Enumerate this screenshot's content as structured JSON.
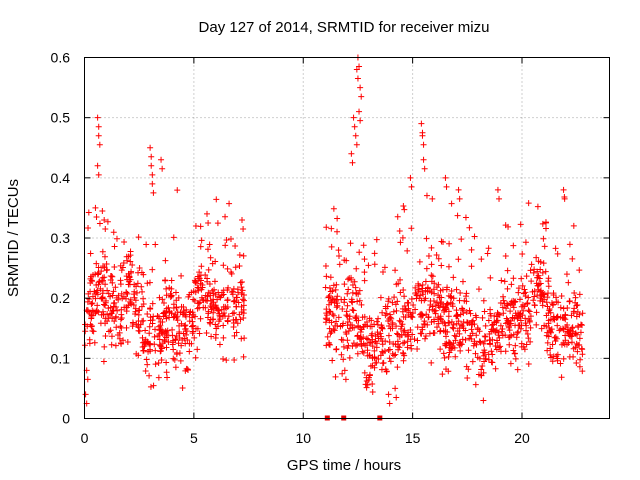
{
  "chart_data": {
    "type": "scatter",
    "title": "Day 127 of 2014, SRMTID for receiver mizu",
    "xlabel": "GPS time / hours",
    "ylabel": "SRMTID / TECUs",
    "xlim": [
      0,
      24
    ],
    "ylim": [
      0,
      0.6
    ],
    "xticks": [
      0,
      5,
      10,
      15,
      20
    ],
    "xtick_labels": [
      "0",
      "5",
      "10",
      "15",
      "20"
    ],
    "yticks": [
      0,
      0.1,
      0.2,
      0.3,
      0.4,
      0.5,
      0.6
    ],
    "ytick_labels": [
      "0",
      "0.1",
      "0.2",
      "0.3",
      "0.4",
      "0.5",
      "0.6"
    ],
    "grid": true,
    "colors": {
      "marker": "#ff0000"
    },
    "marker": "plus",
    "zero_values_x": [
      11.1,
      11.85,
      13.5
    ],
    "series": [
      {
        "name": "SRMTID",
        "segments": [
          {
            "x_start": 0.0,
            "x_end": 7.3,
            "baseline": 0.17,
            "spread": 0.06,
            "spikes": [
              {
                "x": 0.6,
                "y": 0.5
              },
              {
                "x": 0.65,
                "y": 0.47
              },
              {
                "x": 0.6,
                "y": 0.42
              },
              {
                "x": 0.5,
                "y": 0.35
              },
              {
                "x": 0.9,
                "y": 0.33
              },
              {
                "x": 3.0,
                "y": 0.45
              },
              {
                "x": 3.05,
                "y": 0.42
              },
              {
                "x": 3.5,
                "y": 0.43
              },
              {
                "x": 3.1,
                "y": 0.39
              },
              {
                "x": 5.6,
                "y": 0.34
              },
              {
                "x": 7.2,
                "y": 0.33
              },
              {
                "x": 0.05,
                "y": 0.04
              },
              {
                "x": 0.1,
                "y": 0.08
              }
            ]
          },
          {
            "x_start": 11.0,
            "x_end": 22.8,
            "baseline": 0.16,
            "spread": 0.06,
            "spikes": [
              {
                "x": 12.5,
                "y": 0.6
              },
              {
                "x": 12.45,
                "y": 0.58
              },
              {
                "x": 12.6,
                "y": 0.55
              },
              {
                "x": 12.55,
                "y": 0.51
              },
              {
                "x": 12.3,
                "y": 0.5
              },
              {
                "x": 12.4,
                "y": 0.47
              },
              {
                "x": 12.2,
                "y": 0.44
              },
              {
                "x": 15.4,
                "y": 0.49
              },
              {
                "x": 15.45,
                "y": 0.47
              },
              {
                "x": 15.5,
                "y": 0.43
              },
              {
                "x": 14.9,
                "y": 0.4
              },
              {
                "x": 16.5,
                "y": 0.4
              },
              {
                "x": 17.1,
                "y": 0.38
              },
              {
                "x": 18.9,
                "y": 0.38
              },
              {
                "x": 21.9,
                "y": 0.38
              },
              {
                "x": 11.9,
                "y": 0.08
              },
              {
                "x": 13.9,
                "y": 0.04
              },
              {
                "x": 14.2,
                "y": 0.05
              }
            ]
          }
        ]
      }
    ]
  }
}
